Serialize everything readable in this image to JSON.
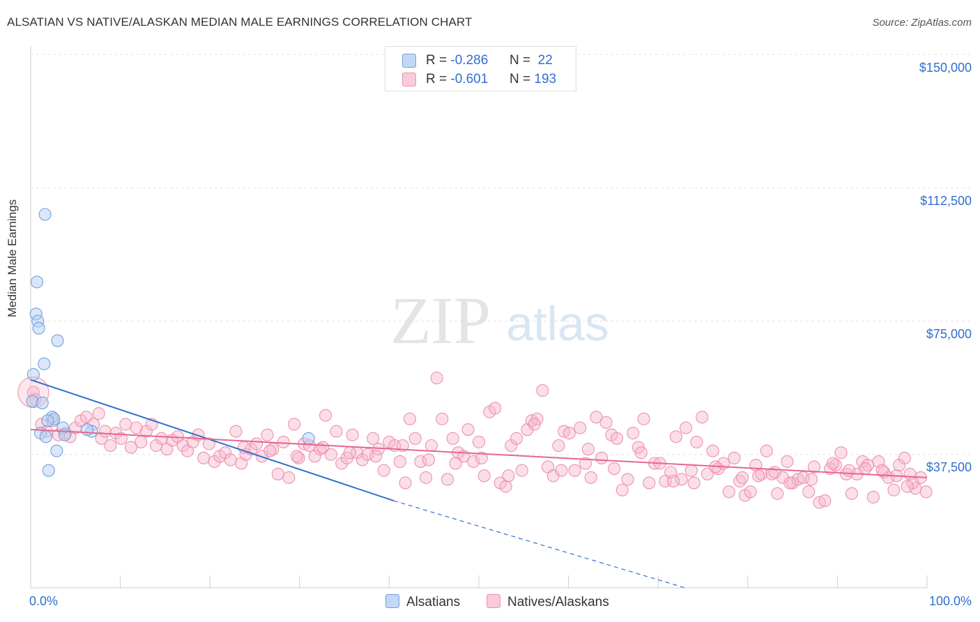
{
  "title": "ALSATIAN VS NATIVE/ALASKAN MEDIAN MALE EARNINGS CORRELATION CHART",
  "source": "Source: ZipAtlas.com",
  "watermark": {
    "zip": "ZIP",
    "atlas": "atlas"
  },
  "legend": {
    "rows": [
      {
        "r_label": "R =",
        "r_value": "-0.286",
        "n_label": "N =",
        "n_value": " 22",
        "color": "#a9c8f0"
      },
      {
        "r_label": "R =",
        "r_value": "-0.601",
        "n_label": "N =",
        "n_value": "193",
        "color": "#f5b8cb"
      }
    ]
  },
  "bottom_legend": {
    "series_a": "Alsatians",
    "series_b": "Natives/Alaskans"
  },
  "chart_data": {
    "type": "scatter",
    "title": "ALSATIAN VS NATIVE/ALASKAN MEDIAN MALE EARNINGS CORRELATION CHART",
    "xlabel": "",
    "ylabel": "Median Male Earnings",
    "xlim": [
      0,
      100
    ],
    "ylim": [
      0,
      150000
    ],
    "x_tick_labels": [
      "0.0%",
      "100.0%"
    ],
    "y_tick_labels": [
      "$37,500",
      "$75,000",
      "$112,500",
      "$150,000"
    ],
    "y_ticks": [
      37500,
      75000,
      112500,
      150000
    ],
    "grid": true,
    "legend_position": "top-center",
    "series": [
      {
        "name": "Alsatians",
        "color": "#6fa0e0",
        "trend": {
          "x0": 0,
          "y0": 58500,
          "x1": 40.5,
          "y1": 24500,
          "dashed_to_x": 73,
          "dashed_to_y": 0
        },
        "points": [
          [
            1.6,
            105000
          ],
          [
            0.7,
            86000
          ],
          [
            0.6,
            77000
          ],
          [
            0.8,
            75000
          ],
          [
            0.9,
            73000
          ],
          [
            3.0,
            69500
          ],
          [
            1.5,
            63000
          ],
          [
            0.3,
            60000
          ],
          [
            0.2,
            52500
          ],
          [
            1.3,
            52000
          ],
          [
            2.4,
            48000
          ],
          [
            2.6,
            47500
          ],
          [
            1.9,
            47000
          ],
          [
            3.6,
            45000
          ],
          [
            6.8,
            44000
          ],
          [
            6.3,
            44500
          ],
          [
            1.1,
            43500
          ],
          [
            1.7,
            42500
          ],
          [
            3.8,
            43000
          ],
          [
            2.9,
            38500
          ],
          [
            2.0,
            33000
          ],
          [
            31.0,
            42000
          ]
        ]
      },
      {
        "name": "Natives/Alaskans",
        "color": "#ee8fae",
        "trend": {
          "x0": 0,
          "y0": 44500,
          "x1": 100,
          "y1": 31000
        },
        "points": [
          [
            0.3,
            55000
          ],
          [
            0.5,
            53000
          ],
          [
            1.2,
            46000
          ],
          [
            1.8,
            44000
          ],
          [
            2.5,
            47000
          ],
          [
            3.1,
            43000
          ],
          [
            3.9,
            43500
          ],
          [
            4.4,
            42500
          ],
          [
            5.0,
            45000
          ],
          [
            5.6,
            47000
          ],
          [
            6.2,
            48000
          ],
          [
            7.0,
            46000
          ],
          [
            7.6,
            49000
          ],
          [
            7.9,
            42000
          ],
          [
            8.3,
            44000
          ],
          [
            8.9,
            40000
          ],
          [
            9.5,
            43500
          ],
          [
            10.1,
            42000
          ],
          [
            10.6,
            46000
          ],
          [
            11.2,
            39500
          ],
          [
            11.8,
            45000
          ],
          [
            12.3,
            41000
          ],
          [
            12.9,
            44000
          ],
          [
            13.5,
            46000
          ],
          [
            14.0,
            40000
          ],
          [
            14.6,
            42000
          ],
          [
            15.2,
            39000
          ],
          [
            15.8,
            41500
          ],
          [
            16.4,
            42500
          ],
          [
            17.0,
            40000
          ],
          [
            17.5,
            38500
          ],
          [
            18.1,
            41000
          ],
          [
            18.7,
            43000
          ],
          [
            19.3,
            36500
          ],
          [
            19.9,
            40500
          ],
          [
            20.5,
            35500
          ],
          [
            21.1,
            37000
          ],
          [
            21.7,
            38000
          ],
          [
            22.3,
            36000
          ],
          [
            22.9,
            44000
          ],
          [
            23.5,
            35000
          ],
          [
            24.0,
            37500
          ],
          [
            24.6,
            39000
          ],
          [
            25.2,
            40500
          ],
          [
            25.8,
            37000
          ],
          [
            26.4,
            43000
          ],
          [
            27.0,
            39000
          ],
          [
            27.6,
            32000
          ],
          [
            28.2,
            41000
          ],
          [
            28.8,
            31000
          ],
          [
            29.4,
            46000
          ],
          [
            29.9,
            36500
          ],
          [
            30.5,
            40500
          ],
          [
            31.1,
            40000
          ],
          [
            31.7,
            37000
          ],
          [
            32.3,
            39000
          ],
          [
            32.9,
            48500
          ],
          [
            33.5,
            37500
          ],
          [
            34.1,
            44000
          ],
          [
            34.7,
            35000
          ],
          [
            35.3,
            36500
          ],
          [
            35.9,
            43000
          ],
          [
            36.4,
            38000
          ],
          [
            37.0,
            36000
          ],
          [
            37.6,
            37500
          ],
          [
            38.2,
            42000
          ],
          [
            38.8,
            39000
          ],
          [
            39.4,
            33000
          ],
          [
            40.0,
            41000
          ],
          [
            40.6,
            40000
          ],
          [
            41.2,
            35500
          ],
          [
            41.8,
            29500
          ],
          [
            42.3,
            47500
          ],
          [
            42.9,
            42000
          ],
          [
            43.5,
            35500
          ],
          [
            44.1,
            31000
          ],
          [
            44.7,
            40000
          ],
          [
            45.3,
            59000
          ],
          [
            45.9,
            47500
          ],
          [
            46.5,
            30500
          ],
          [
            47.1,
            42000
          ],
          [
            47.7,
            38000
          ],
          [
            48.3,
            37000
          ],
          [
            48.8,
            44500
          ],
          [
            49.4,
            35500
          ],
          [
            50.0,
            41000
          ],
          [
            50.6,
            31500
          ],
          [
            51.2,
            49500
          ],
          [
            51.8,
            50500
          ],
          [
            52.4,
            29500
          ],
          [
            53.0,
            28500
          ],
          [
            53.6,
            40000
          ],
          [
            54.2,
            42000
          ],
          [
            54.8,
            33000
          ],
          [
            55.4,
            44500
          ],
          [
            55.9,
            47000
          ],
          [
            56.5,
            47500
          ],
          [
            57.1,
            55500
          ],
          [
            57.7,
            34000
          ],
          [
            58.3,
            31500
          ],
          [
            58.9,
            40000
          ],
          [
            59.5,
            44000
          ],
          [
            60.1,
            43500
          ],
          [
            60.7,
            33000
          ],
          [
            61.3,
            45000
          ],
          [
            61.9,
            35000
          ],
          [
            62.5,
            31000
          ],
          [
            63.1,
            48000
          ],
          [
            63.7,
            36500
          ],
          [
            64.2,
            46500
          ],
          [
            64.8,
            43000
          ],
          [
            65.4,
            42000
          ],
          [
            66.0,
            27500
          ],
          [
            66.6,
            30500
          ],
          [
            67.2,
            43500
          ],
          [
            67.8,
            39500
          ],
          [
            68.4,
            47500
          ],
          [
            69.0,
            29500
          ],
          [
            69.6,
            35000
          ],
          [
            70.2,
            35000
          ],
          [
            70.8,
            30000
          ],
          [
            71.4,
            32500
          ],
          [
            72.0,
            42500
          ],
          [
            72.6,
            30500
          ],
          [
            73.1,
            45000
          ],
          [
            73.7,
            33000
          ],
          [
            74.3,
            41000
          ],
          [
            74.9,
            48000
          ],
          [
            75.5,
            32000
          ],
          [
            76.1,
            38500
          ],
          [
            76.7,
            33500
          ],
          [
            77.3,
            35000
          ],
          [
            77.9,
            27000
          ],
          [
            78.5,
            36500
          ],
          [
            79.1,
            30000
          ],
          [
            79.7,
            26000
          ],
          [
            80.3,
            27000
          ],
          [
            80.9,
            34500
          ],
          [
            81.5,
            32000
          ],
          [
            82.1,
            38500
          ],
          [
            82.7,
            32000
          ],
          [
            83.3,
            26500
          ],
          [
            83.9,
            31000
          ],
          [
            84.4,
            35500
          ],
          [
            85.0,
            29500
          ],
          [
            85.6,
            30500
          ],
          [
            86.2,
            31000
          ],
          [
            86.8,
            27000
          ],
          [
            87.4,
            34000
          ],
          [
            88.0,
            24000
          ],
          [
            88.6,
            24500
          ],
          [
            89.2,
            33500
          ],
          [
            89.8,
            34500
          ],
          [
            90.4,
            38000
          ],
          [
            91.0,
            32000
          ],
          [
            91.6,
            26500
          ],
          [
            92.2,
            32000
          ],
          [
            92.8,
            35500
          ],
          [
            93.4,
            34500
          ],
          [
            94.0,
            25500
          ],
          [
            94.6,
            35500
          ],
          [
            95.2,
            32500
          ],
          [
            95.7,
            31000
          ],
          [
            96.3,
            27500
          ],
          [
            96.9,
            34500
          ],
          [
            97.5,
            36500
          ],
          [
            98.1,
            32000
          ],
          [
            98.7,
            28000
          ],
          [
            99.3,
            31000
          ],
          [
            99.9,
            27000
          ],
          [
            98.4,
            29500
          ],
          [
            97.8,
            28500
          ],
          [
            96.6,
            31500
          ],
          [
            95.0,
            33000
          ],
          [
            93.1,
            33500
          ],
          [
            91.3,
            33000
          ],
          [
            89.5,
            35000
          ],
          [
            87.1,
            30500
          ],
          [
            84.7,
            29500
          ],
          [
            83.0,
            32500
          ],
          [
            81.2,
            31500
          ],
          [
            79.4,
            31000
          ],
          [
            76.4,
            34000
          ],
          [
            74.0,
            29500
          ],
          [
            71.7,
            30000
          ],
          [
            68.1,
            38000
          ],
          [
            65.1,
            33500
          ],
          [
            62.2,
            39000
          ],
          [
            59.2,
            33000
          ],
          [
            56.2,
            46000
          ],
          [
            53.3,
            31500
          ],
          [
            50.3,
            36500
          ],
          [
            47.4,
            35000
          ],
          [
            44.4,
            36000
          ],
          [
            41.5,
            40000
          ],
          [
            38.5,
            37000
          ],
          [
            35.6,
            38000
          ],
          [
            32.6,
            39500
          ],
          [
            29.7,
            37000
          ],
          [
            26.7,
            38500
          ],
          [
            23.8,
            39500
          ]
        ]
      }
    ]
  }
}
